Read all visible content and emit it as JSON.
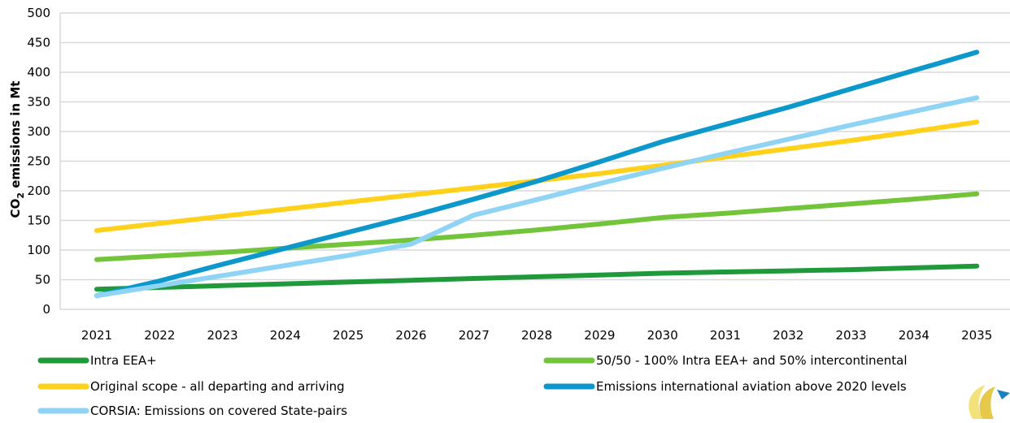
{
  "chart_data": {
    "type": "line",
    "ylabel": "CO2 emissions in Mt",
    "ylabel_parts": {
      "pre": "CO",
      "sub": "2",
      "post": " emissions in Mt"
    },
    "ylim": [
      0,
      500
    ],
    "yticks": [
      0,
      50,
      100,
      150,
      200,
      250,
      300,
      350,
      400,
      450,
      500
    ],
    "grid": true,
    "legend_position": "bottom",
    "x": [
      "2021",
      "2022",
      "2023",
      "2024",
      "2025",
      "2026",
      "2027",
      "2028",
      "2029",
      "2030",
      "2031",
      "2032",
      "2033",
      "2034",
      "2035"
    ],
    "series": [
      {
        "name": "Intra EEA+",
        "color": "#1e9a3a",
        "values": [
          34,
          37,
          40,
          43,
          46,
          49,
          52,
          55,
          58,
          61,
          63,
          65,
          67,
          70,
          73
        ]
      },
      {
        "name": "50/50  - 100% Intra EEA+ and 50% intercontinental",
        "color": "#72c43b",
        "values": [
          84,
          90,
          96,
          103,
          110,
          117,
          125,
          134,
          144,
          155,
          162,
          170,
          178,
          186,
          195
        ]
      },
      {
        "name": "Original scope - all departing and arriving",
        "color": "#ffd11a",
        "values": [
          133,
          145,
          157,
          169,
          181,
          193,
          205,
          217,
          229,
          243,
          257,
          271,
          285,
          300,
          316
        ]
      },
      {
        "name": "Emissions international aviation above 2020 levels",
        "color": "#0d98cc",
        "values": [
          23,
          48,
          76,
          103,
          130,
          157,
          186,
          216,
          249,
          283,
          312,
          341,
          372,
          403,
          434
        ]
      },
      {
        "name": "CORSIA: Emissions on covered State-pairs",
        "color": "#8fd3f5",
        "values": [
          23,
          40,
          57,
          74,
          91,
          110,
          159,
          185,
          212,
          238,
          263,
          287,
          311,
          334,
          357
        ]
      }
    ]
  },
  "logo": {
    "name": "brand-logo"
  }
}
